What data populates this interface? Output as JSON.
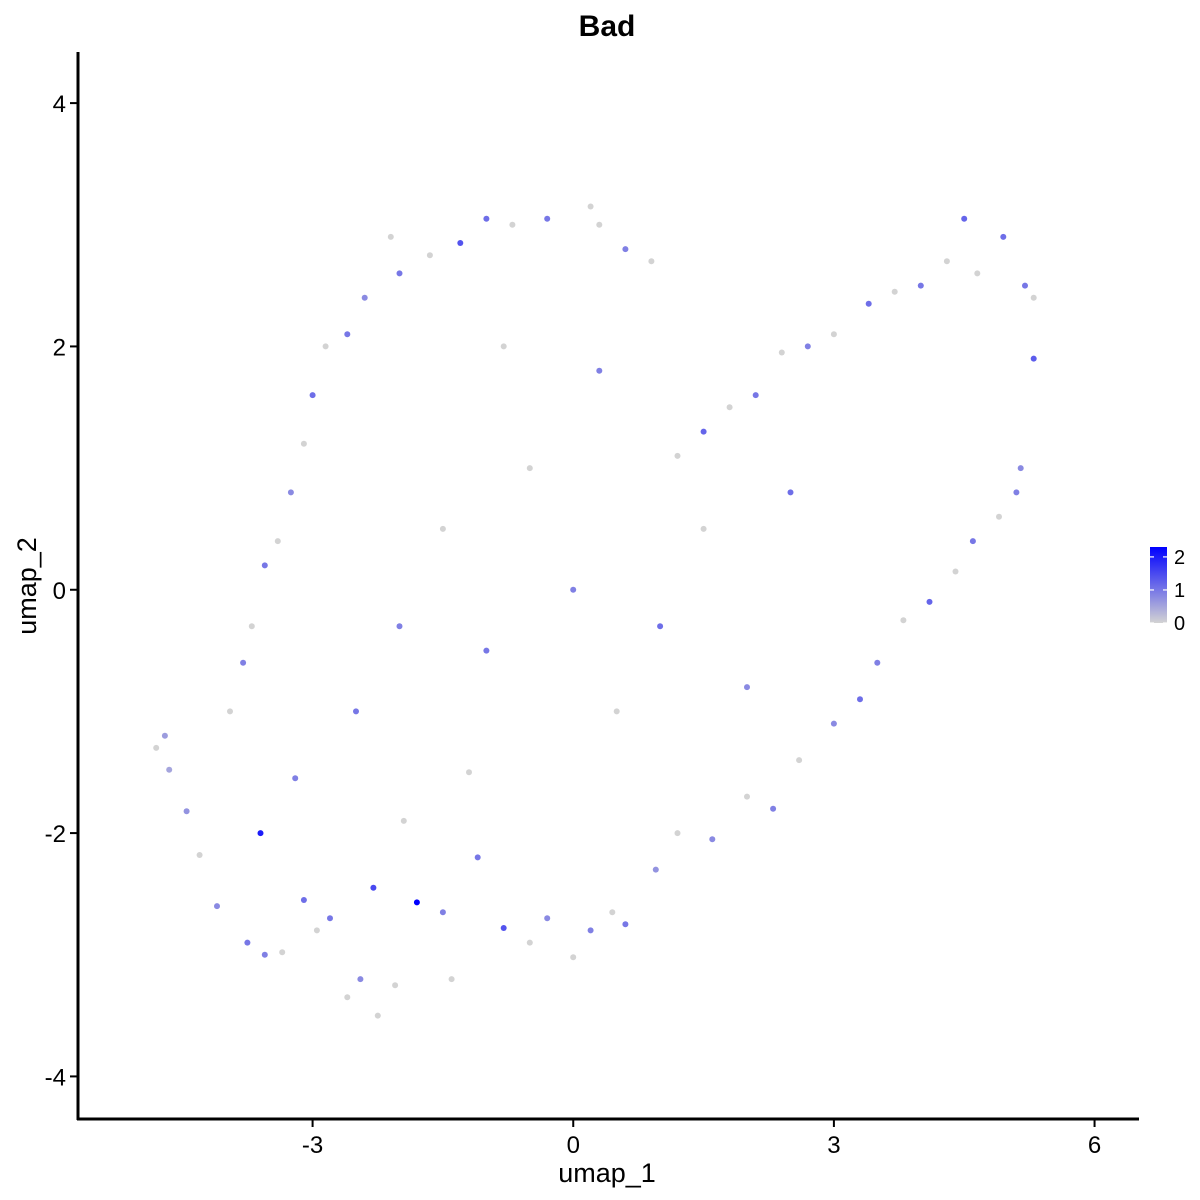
{
  "chart_data": {
    "type": "scatter",
    "title": "Bad",
    "xlabel": "umap_1",
    "ylabel": "umap_2",
    "xlim": [
      -5.7,
      6.5
    ],
    "ylim": [
      -4.35,
      4.42
    ],
    "x_ticks": [
      -3,
      0,
      3,
      6
    ],
    "y_ticks": [
      -4,
      -2,
      0,
      2,
      4
    ],
    "x_tick_labels": [
      "-3",
      "0",
      "3",
      "6"
    ],
    "y_tick_labels": [
      "-4",
      "-2",
      "0",
      "2",
      "4"
    ],
    "grid": false,
    "color_scale": {
      "low_color": "#d3d3d3",
      "high_color": "#0000ff",
      "min": 0,
      "max": 2.3,
      "ticks": [
        0,
        1,
        2
      ],
      "tick_labels": [
        "0",
        "1",
        "2"
      ],
      "legend_position": "right"
    },
    "points": [
      {
        "x": -4.8,
        "y": -1.3,
        "v": 0.0
      },
      {
        "x": -4.7,
        "y": -1.2,
        "v": 0.6
      },
      {
        "x": -4.65,
        "y": -1.48,
        "v": 0.5
      },
      {
        "x": -4.45,
        "y": -1.82,
        "v": 0.7
      },
      {
        "x": -4.3,
        "y": -2.18,
        "v": 0.0
      },
      {
        "x": -4.1,
        "y": -2.6,
        "v": 0.8
      },
      {
        "x": -3.75,
        "y": -2.9,
        "v": 1.0
      },
      {
        "x": -3.6,
        "y": -2.0,
        "v": 2.0
      },
      {
        "x": -3.55,
        "y": -3.0,
        "v": 0.9
      },
      {
        "x": -3.35,
        "y": -2.98,
        "v": 0.0
      },
      {
        "x": -3.2,
        "y": -1.55,
        "v": 0.9
      },
      {
        "x": -3.1,
        "y": -2.55,
        "v": 1.1
      },
      {
        "x": -2.95,
        "y": -2.8,
        "v": 0.0
      },
      {
        "x": -2.8,
        "y": -2.7,
        "v": 1.0
      },
      {
        "x": -2.6,
        "y": -3.35,
        "v": 0.0
      },
      {
        "x": -2.45,
        "y": -3.2,
        "v": 0.8
      },
      {
        "x": -2.3,
        "y": -2.45,
        "v": 1.5
      },
      {
        "x": -2.25,
        "y": -3.5,
        "v": 0.0
      },
      {
        "x": -2.05,
        "y": -3.25,
        "v": 0.0
      },
      {
        "x": -1.8,
        "y": -2.57,
        "v": 2.3
      },
      {
        "x": -1.95,
        "y": -1.9,
        "v": 0.0
      },
      {
        "x": -1.5,
        "y": -2.65,
        "v": 0.9
      },
      {
        "x": -1.4,
        "y": -3.2,
        "v": 0.0
      },
      {
        "x": -1.1,
        "y": -2.2,
        "v": 1.0
      },
      {
        "x": -0.8,
        "y": -2.78,
        "v": 1.4
      },
      {
        "x": -0.5,
        "y": -2.9,
        "v": 0.0
      },
      {
        "x": -0.3,
        "y": -2.7,
        "v": 0.8
      },
      {
        "x": 0.0,
        "y": -3.02,
        "v": 0.0
      },
      {
        "x": 0.2,
        "y": -2.8,
        "v": 0.9
      },
      {
        "x": 0.45,
        "y": -2.65,
        "v": 0.0
      },
      {
        "x": 0.6,
        "y": -2.75,
        "v": 1.0
      },
      {
        "x": 0.95,
        "y": -2.3,
        "v": 0.7
      },
      {
        "x": 1.2,
        "y": -2.0,
        "v": 0.0
      },
      {
        "x": 1.6,
        "y": -2.05,
        "v": 0.8
      },
      {
        "x": 2.0,
        "y": -1.7,
        "v": 0.0
      },
      {
        "x": 2.3,
        "y": -1.8,
        "v": 0.9
      },
      {
        "x": 2.6,
        "y": -1.4,
        "v": 0.0
      },
      {
        "x": 3.0,
        "y": -1.1,
        "v": 0.8
      },
      {
        "x": 3.3,
        "y": -0.9,
        "v": 1.1
      },
      {
        "x": 3.5,
        "y": -0.6,
        "v": 0.9
      },
      {
        "x": 3.8,
        "y": -0.25,
        "v": 0.0
      },
      {
        "x": 4.1,
        "y": -0.1,
        "v": 1.2
      },
      {
        "x": 4.4,
        "y": 0.15,
        "v": 0.0
      },
      {
        "x": 4.6,
        "y": 0.4,
        "v": 1.0
      },
      {
        "x": 4.9,
        "y": 0.6,
        "v": 0.0
      },
      {
        "x": 5.1,
        "y": 0.8,
        "v": 0.9
      },
      {
        "x": 5.15,
        "y": 1.0,
        "v": 0.8
      },
      {
        "x": 5.3,
        "y": 1.9,
        "v": 1.3
      },
      {
        "x": 5.3,
        "y": 2.4,
        "v": 0.0
      },
      {
        "x": 5.2,
        "y": 2.5,
        "v": 1.0
      },
      {
        "x": 4.95,
        "y": 2.9,
        "v": 1.1
      },
      {
        "x": 4.65,
        "y": 2.6,
        "v": 0.0
      },
      {
        "x": 4.5,
        "y": 3.05,
        "v": 1.2
      },
      {
        "x": 4.3,
        "y": 2.7,
        "v": 0.0
      },
      {
        "x": 4.0,
        "y": 2.5,
        "v": 1.0
      },
      {
        "x": 3.7,
        "y": 2.45,
        "v": 0.0
      },
      {
        "x": 3.4,
        "y": 2.35,
        "v": 1.1
      },
      {
        "x": 3.0,
        "y": 2.1,
        "v": 0.0
      },
      {
        "x": 2.7,
        "y": 2.0,
        "v": 0.9
      },
      {
        "x": 2.4,
        "y": 1.95,
        "v": 0.0
      },
      {
        "x": 2.1,
        "y": 1.6,
        "v": 1.0
      },
      {
        "x": 1.8,
        "y": 1.5,
        "v": 0.0
      },
      {
        "x": 1.5,
        "y": 1.3,
        "v": 1.2
      },
      {
        "x": 1.2,
        "y": 1.1,
        "v": 0.0
      },
      {
        "x": 0.9,
        "y": 2.7,
        "v": 0.0
      },
      {
        "x": 0.6,
        "y": 2.8,
        "v": 0.9
      },
      {
        "x": 0.3,
        "y": 3.0,
        "v": 0.0
      },
      {
        "x": 0.2,
        "y": 3.15,
        "v": 0.0
      },
      {
        "x": -0.3,
        "y": 3.05,
        "v": 1.0
      },
      {
        "x": -0.7,
        "y": 3.0,
        "v": 0.0
      },
      {
        "x": -1.0,
        "y": 3.05,
        "v": 1.1
      },
      {
        "x": -1.3,
        "y": 2.85,
        "v": 1.4
      },
      {
        "x": -1.65,
        "y": 2.75,
        "v": 0.0
      },
      {
        "x": -2.0,
        "y": 2.6,
        "v": 1.0
      },
      {
        "x": -2.1,
        "y": 2.9,
        "v": 0.0
      },
      {
        "x": -2.4,
        "y": 2.4,
        "v": 0.8
      },
      {
        "x": -2.6,
        "y": 2.1,
        "v": 1.0
      },
      {
        "x": -2.85,
        "y": 2.0,
        "v": 0.0
      },
      {
        "x": -3.0,
        "y": 1.6,
        "v": 1.1
      },
      {
        "x": -3.1,
        "y": 1.2,
        "v": 0.0
      },
      {
        "x": -3.25,
        "y": 0.8,
        "v": 0.8
      },
      {
        "x": -3.4,
        "y": 0.4,
        "v": 0.0
      },
      {
        "x": -3.55,
        "y": 0.2,
        "v": 1.0
      },
      {
        "x": -3.7,
        "y": -0.3,
        "v": 0.0
      },
      {
        "x": -3.8,
        "y": -0.6,
        "v": 0.9
      },
      {
        "x": -3.95,
        "y": -1.0,
        "v": 0.0
      },
      {
        "x": -2.0,
        "y": -0.3,
        "v": 0.9
      },
      {
        "x": -1.5,
        "y": 0.5,
        "v": 0.0
      },
      {
        "x": -1.0,
        "y": -0.5,
        "v": 1.0
      },
      {
        "x": -0.5,
        "y": 1.0,
        "v": 0.0
      },
      {
        "x": 0.0,
        "y": 0.0,
        "v": 0.9
      },
      {
        "x": 0.5,
        "y": -1.0,
        "v": 0.0
      },
      {
        "x": 1.0,
        "y": -0.3,
        "v": 1.1
      },
      {
        "x": 1.5,
        "y": 0.5,
        "v": 0.0
      },
      {
        "x": 2.0,
        "y": -0.8,
        "v": 0.8
      },
      {
        "x": -2.5,
        "y": -1.0,
        "v": 1.0
      },
      {
        "x": -1.2,
        "y": -1.5,
        "v": 0.0
      },
      {
        "x": 0.3,
        "y": 1.8,
        "v": 0.9
      },
      {
        "x": -0.8,
        "y": 2.0,
        "v": 0.0
      },
      {
        "x": 2.5,
        "y": 0.8,
        "v": 1.1
      }
    ]
  }
}
